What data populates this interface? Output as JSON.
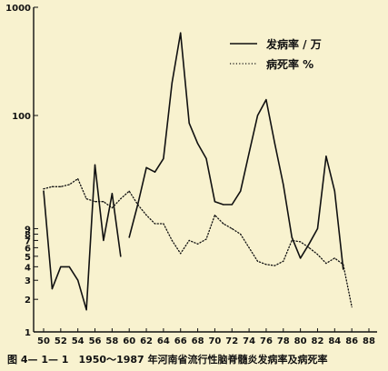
{
  "caption": "图 4— 1— 1　1950～1987 年河南省流行性脑脊髓炎发病率及病死率",
  "chart_data": {
    "type": "line",
    "yscale": "log",
    "ylim": [
      1,
      1000
    ],
    "xlim": [
      50,
      88
    ],
    "grid": false,
    "legend_placement": "top-right",
    "y_ticks": [
      {
        "value": 1,
        "label": "1"
      },
      {
        "value": 2,
        "label": "2"
      },
      {
        "value": 3,
        "label": "3"
      },
      {
        "value": 4,
        "label": "4"
      },
      {
        "value": 5,
        "label": "5"
      },
      {
        "value": 6,
        "label": "6"
      },
      {
        "value": 7,
        "label": "7"
      },
      {
        "value": 8,
        "label": "8"
      },
      {
        "value": 9,
        "label": "9"
      },
      {
        "value": 100,
        "label": "100"
      },
      {
        "value": 1000,
        "label": "1000"
      }
    ],
    "x_ticks": [
      "50",
      "52",
      "54",
      "56",
      "58",
      "60",
      "62",
      "64",
      "66",
      "68",
      "70",
      "72",
      "74",
      "76",
      "78",
      "80",
      "82",
      "84",
      "86",
      "88"
    ],
    "series": [
      {
        "name": "发病率 / 万",
        "style": "solid",
        "color": "#111111",
        "points": [
          [
            50,
            20
          ],
          [
            51,
            2.5
          ],
          [
            52,
            4
          ],
          [
            53,
            4
          ],
          [
            54,
            3
          ],
          [
            55,
            1.6
          ],
          [
            56,
            35
          ],
          [
            57,
            7
          ],
          [
            58,
            19
          ],
          [
            59,
            5
          ],
          [
            60,
            null
          ],
          [
            60,
            7.5
          ],
          [
            61,
            15
          ],
          [
            62,
            33
          ],
          [
            63,
            30
          ],
          [
            64,
            40
          ],
          [
            65,
            200
          ],
          [
            66,
            580
          ],
          [
            67,
            85
          ],
          [
            68,
            55
          ],
          [
            69,
            40
          ],
          [
            70,
            16
          ],
          [
            71,
            15
          ],
          [
            72,
            15
          ],
          [
            73,
            20
          ],
          [
            74,
            45
          ],
          [
            75,
            100
          ],
          [
            76,
            140
          ],
          [
            77,
            55
          ],
          [
            78,
            23
          ],
          [
            79,
            7.5
          ],
          [
            80,
            4.8
          ],
          [
            81,
            6.5
          ],
          [
            82,
            9
          ],
          [
            83,
            42
          ],
          [
            84,
            20
          ],
          [
            85,
            3.8
          ]
        ]
      },
      {
        "name": "病死率 %",
        "style": "dotted",
        "color": "#111111",
        "points": [
          [
            50,
            21
          ],
          [
            51,
            22
          ],
          [
            52,
            22
          ],
          [
            53,
            23
          ],
          [
            54,
            26
          ],
          [
            55,
            17
          ],
          [
            56,
            16
          ],
          [
            57,
            16
          ],
          [
            58,
            14
          ],
          [
            59,
            17
          ],
          [
            60,
            20
          ],
          [
            61,
            15
          ],
          [
            62,
            12
          ],
          [
            63,
            10
          ],
          [
            64,
            10
          ],
          [
            65,
            7
          ],
          [
            66,
            5.3
          ],
          [
            67,
            7
          ],
          [
            68,
            6.5
          ],
          [
            69,
            7.2
          ],
          [
            70,
            12
          ],
          [
            71,
            10
          ],
          [
            72,
            9
          ],
          [
            73,
            8
          ],
          [
            74,
            6
          ],
          [
            75,
            4.5
          ],
          [
            76,
            4.2
          ],
          [
            77,
            4.1
          ],
          [
            78,
            4.5
          ],
          [
            79,
            7
          ],
          [
            80,
            6.8
          ],
          [
            81,
            6
          ],
          [
            82,
            5.2
          ],
          [
            83,
            4.3
          ],
          [
            84,
            4.8
          ],
          [
            85,
            4.2
          ],
          [
            86,
            1.7
          ]
        ]
      }
    ]
  }
}
